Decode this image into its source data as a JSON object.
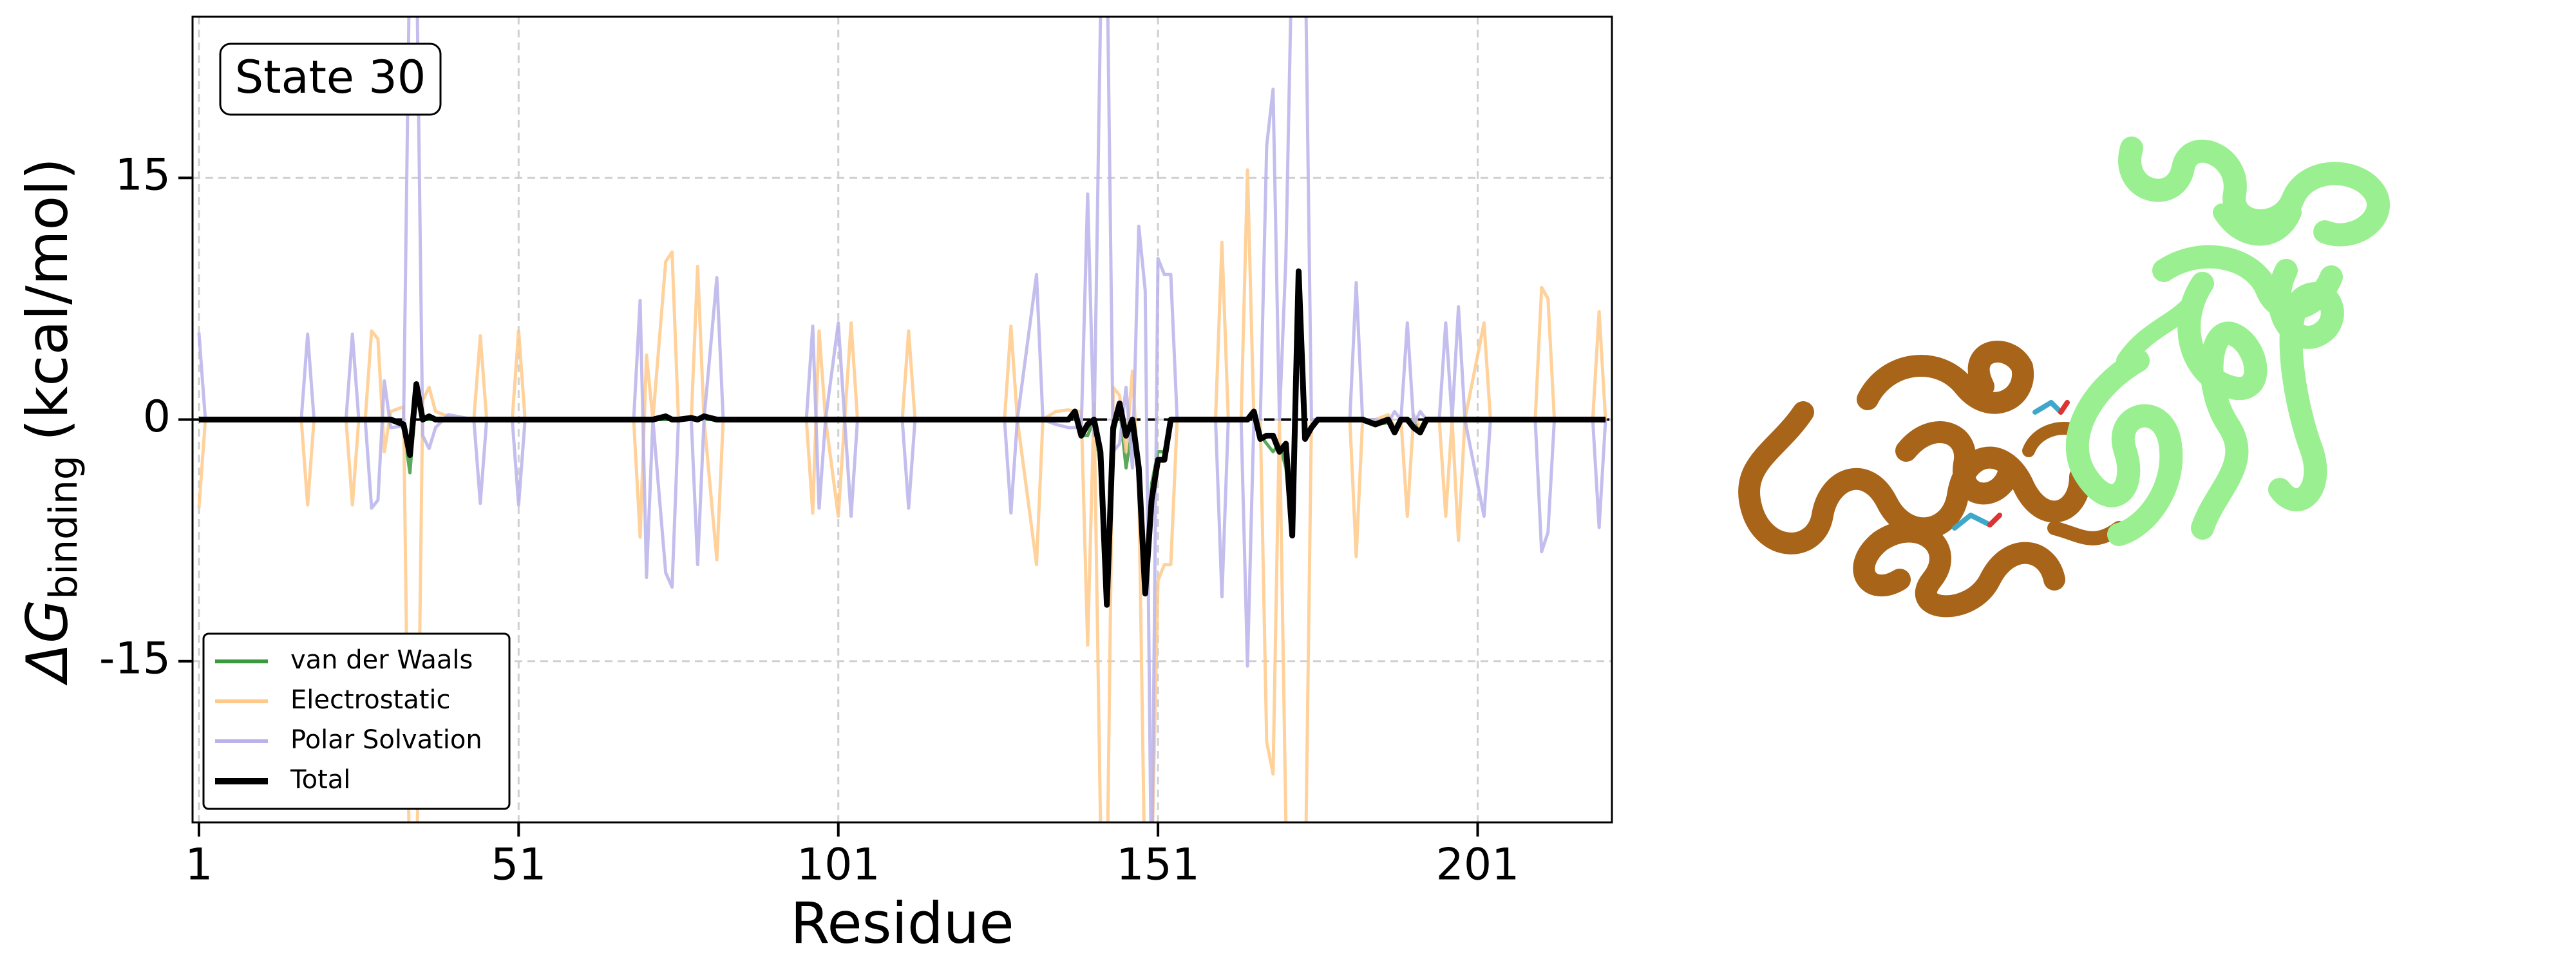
{
  "chart_data": {
    "type": "line",
    "annotation": "State 30",
    "xlabel": "Residue",
    "ylabel": "ΔG",
    "ylabel_subscript": "binding",
    "ylabel_unit": "(kcal/mol)",
    "xlim": [
      0,
      222
    ],
    "ylim": [
      -25,
      25
    ],
    "xticks": [
      1,
      51,
      101,
      151,
      201
    ],
    "yticks": [
      -15,
      0,
      15
    ],
    "hline": 0,
    "grid": true,
    "legend": "lower left",
    "x": [
      1,
      2,
      17,
      18,
      19,
      24,
      25,
      26,
      27,
      28,
      29,
      30,
      31,
      33,
      34,
      35,
      36,
      37,
      38,
      40,
      44,
      45,
      46,
      50,
      51,
      52,
      69,
      70,
      71,
      72,
      74,
      75,
      76,
      78,
      79,
      80,
      82,
      83,
      96,
      97,
      98,
      99,
      101,
      102,
      103,
      104,
      111,
      112,
      113,
      127,
      128,
      129,
      131,
      132,
      133,
      135,
      137,
      138,
      139,
      140,
      141,
      142,
      143,
      144,
      145,
      146,
      147,
      148,
      149,
      150,
      151,
      152,
      153,
      154,
      160,
      161,
      162,
      164,
      165,
      166,
      167,
      168,
      169,
      170,
      171,
      172,
      173,
      174,
      175,
      176,
      181,
      182,
      183,
      185,
      187,
      188,
      189,
      190,
      191,
      192,
      193,
      195,
      196,
      197,
      198,
      199,
      202,
      203,
      210,
      211,
      212,
      213,
      219,
      220,
      221
    ],
    "series": [
      {
        "name": "van der Waals",
        "color": "#3c9a3c",
        "values": [
          0,
          0,
          0,
          0,
          0,
          0,
          0,
          0,
          0,
          0,
          0,
          0,
          0,
          -0.5,
          -3.3,
          1.5,
          0,
          0,
          0,
          0,
          0,
          0,
          0,
          0,
          0,
          0,
          0,
          0,
          0,
          0,
          0,
          0,
          0,
          0,
          0,
          0,
          0,
          0,
          0,
          0,
          0,
          0,
          0,
          0,
          0,
          0,
          0,
          0,
          0,
          0,
          0,
          0,
          0,
          0,
          0,
          0,
          0,
          0.3,
          -1,
          -1,
          0,
          -3,
          -11,
          -1,
          0.8,
          -3,
          -0.5,
          -3,
          -10.5,
          -4,
          -2,
          -2,
          0,
          0,
          0,
          0,
          0,
          0,
          0,
          0.4,
          -1,
          -1.5,
          -2,
          -1.5,
          -3,
          -6.5,
          8.5,
          -1,
          -0.5,
          0,
          0,
          0,
          0,
          -0.3,
          -0.2,
          -0.8,
          0,
          0,
          0,
          -0.8,
          0,
          0,
          0,
          0,
          0,
          0,
          0,
          0,
          0,
          0,
          0,
          0,
          0,
          0,
          0
        ]
      },
      {
        "name": "Electrostatic",
        "color": "#ffc98a",
        "values": [
          -5.5,
          0,
          0,
          -5.3,
          0,
          0,
          -5.3,
          0,
          0,
          5.5,
          5,
          -2,
          0.5,
          0.8,
          -30,
          -30,
          1.2,
          2,
          0.5,
          0.2,
          0,
          5.2,
          0,
          0,
          5.5,
          0,
          0,
          -7.3,
          4,
          0,
          9.8,
          10.4,
          0,
          0,
          9.5,
          0,
          -8.7,
          0,
          0,
          -5.8,
          5.5,
          0,
          -6,
          0,
          6,
          0,
          0,
          5.5,
          0,
          0,
          5.8,
          0,
          -6,
          -9,
          0,
          0.5,
          0.6,
          0.5,
          0.5,
          -14,
          1,
          -25,
          -30,
          2,
          1.5,
          -2,
          3,
          -4,
          -30,
          -28,
          -10,
          -9,
          -9,
          0,
          0,
          11,
          0,
          0,
          15.5,
          0,
          0,
          -20,
          -22,
          0,
          -25,
          -30,
          -30,
          -30,
          0,
          0,
          0,
          -8.5,
          0,
          0,
          0.3,
          -0.5,
          0,
          -6,
          0.3,
          -0.5,
          0,
          0,
          -6,
          0,
          -7.5,
          0,
          6,
          0,
          0,
          8.2,
          7.5,
          0,
          0,
          6.7,
          0
        ]
      },
      {
        "name": "Polar Solvation",
        "color": "#b9b3ea",
        "values": [
          5.4,
          0,
          0,
          5.3,
          0,
          0,
          5.3,
          0,
          0,
          -5.5,
          -5,
          2.4,
          -0.5,
          -0.4,
          30,
          30,
          -1,
          -1.8,
          -0.5,
          0.3,
          0,
          -5.2,
          0,
          0,
          -5.3,
          0,
          0,
          7.4,
          -9.8,
          0,
          -9.5,
          -10.4,
          0,
          0,
          -9,
          0,
          8.8,
          0,
          0,
          5.8,
          -5.5,
          0,
          6,
          0,
          -6,
          0,
          0,
          -5.5,
          0,
          0,
          -5.8,
          0,
          6,
          9,
          0,
          -0.3,
          -0.5,
          -0.5,
          -0.5,
          14,
          -1,
          25,
          30,
          -2,
          -1.5,
          2,
          -3,
          12,
          8,
          -30,
          10,
          9,
          9,
          0,
          0,
          -11,
          0,
          0,
          -15.3,
          0,
          0,
          17,
          20.5,
          0,
          10,
          30,
          30,
          30,
          0,
          0,
          0,
          8.5,
          0,
          0,
          -0.2,
          0.5,
          0,
          6,
          -0.3,
          0.5,
          0,
          0,
          6,
          0,
          7,
          0,
          -6,
          0,
          0,
          -8.2,
          -7,
          0,
          0,
          -6.7,
          0
        ]
      },
      {
        "name": "Total",
        "color": "#000000",
        "values": [
          0,
          0,
          0,
          0,
          0,
          0,
          0,
          0,
          0,
          0,
          0,
          0,
          0,
          -0.3,
          -2.2,
          2.2,
          0,
          0.2,
          0,
          0,
          0,
          0,
          0,
          0,
          0,
          0,
          0,
          0,
          0,
          0,
          0.2,
          0,
          0,
          0.1,
          0,
          0.2,
          0,
          0,
          0,
          0,
          0,
          0,
          0,
          0,
          0,
          0,
          0,
          0,
          0,
          0,
          0,
          0,
          0,
          0,
          0,
          0,
          0,
          0.5,
          -1,
          -0.3,
          0,
          -2,
          -11.5,
          -0.5,
          1,
          -1,
          0,
          -3,
          -10.8,
          -5,
          -2.5,
          -2.5,
          0,
          0,
          0,
          0,
          0,
          0,
          0,
          0.5,
          -1.2,
          -1,
          -1,
          -2,
          -1.5,
          -7.2,
          9.2,
          -1.2,
          -0.5,
          0,
          0,
          0,
          0,
          -0.3,
          0,
          -0.8,
          0,
          0,
          -0.5,
          -0.8,
          0,
          0,
          0,
          0,
          0,
          0,
          0,
          0,
          0,
          0,
          0,
          0,
          0,
          0,
          0
        ]
      }
    ]
  }
}
